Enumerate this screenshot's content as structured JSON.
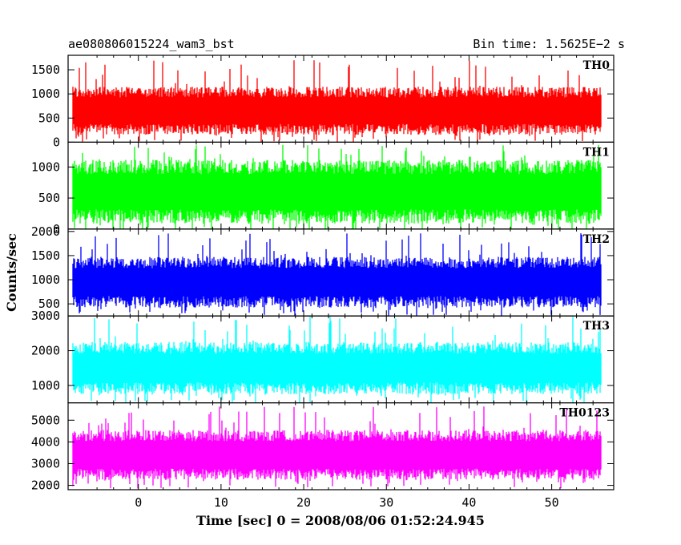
{
  "header": {
    "title": "ae080806015224_wam3_bst",
    "bin_time": "Bin time: 1.5625E−2 s"
  },
  "chart_data": {
    "type": "line",
    "title": "ae080806015224_wam3_bst",
    "subtitle": "Bin time: 1.5625E−2 s",
    "xlabel": "Time [sec] 0 = 2008/08/06 01:52:24.945",
    "ylabel": "Counts/sec",
    "xlim": [
      -8.5,
      57.5
    ],
    "x_range_data": [
      -8,
      56
    ],
    "x_ticks": [
      0,
      10,
      20,
      30,
      40,
      50
    ],
    "x_tick_labels": [
      "0",
      "10",
      "20",
      "30",
      "40",
      "50"
    ],
    "grid": false,
    "panels": [
      {
        "name": "TH0",
        "color": "#ff0000",
        "ylim": [
          0,
          1800
        ],
        "y_ticks": [
          0,
          500,
          1000,
          1500
        ],
        "y_tick_labels": [
          "0",
          "500",
          "1000",
          "1500"
        ],
        "typical_range": [
          150,
          1150
        ],
        "mean": 650,
        "max_spike": 1700
      },
      {
        "name": "TH1",
        "color": "#00ff00",
        "ylim": [
          0,
          1400
        ],
        "y_ticks": [
          0,
          500,
          1000
        ],
        "y_tick_labels": [
          "0",
          "500",
          "1000"
        ],
        "typical_range": [
          120,
          1150
        ],
        "mean": 600,
        "max_spike": 1400
      },
      {
        "name": "TH2",
        "color": "#0000ff",
        "ylim": [
          250,
          2050
        ],
        "y_ticks": [
          500,
          1000,
          1500,
          2000
        ],
        "y_tick_labels": [
          "500",
          "1000",
          "1500",
          "2000"
        ],
        "typical_range": [
          450,
          1500
        ],
        "mean": 950,
        "max_spike": 2000
      },
      {
        "name": "TH3",
        "color": "#00ffff",
        "ylim": [
          500,
          3000
        ],
        "y_ticks": [
          1000,
          2000,
          3000
        ],
        "y_tick_labels": [
          "1000",
          "2000",
          "3000"
        ],
        "typical_range": [
          750,
          2250
        ],
        "mean": 1500,
        "max_spike": 3000
      },
      {
        "name": "TH0123",
        "color": "#ff00ff",
        "ylim": [
          1800,
          5800
        ],
        "y_ticks": [
          2000,
          3000,
          4000,
          5000
        ],
        "y_tick_labels": [
          "2000",
          "3000",
          "4000",
          "5000"
        ],
        "typical_range": [
          2300,
          4600
        ],
        "mean": 3400,
        "max_spike": 5700
      }
    ]
  }
}
